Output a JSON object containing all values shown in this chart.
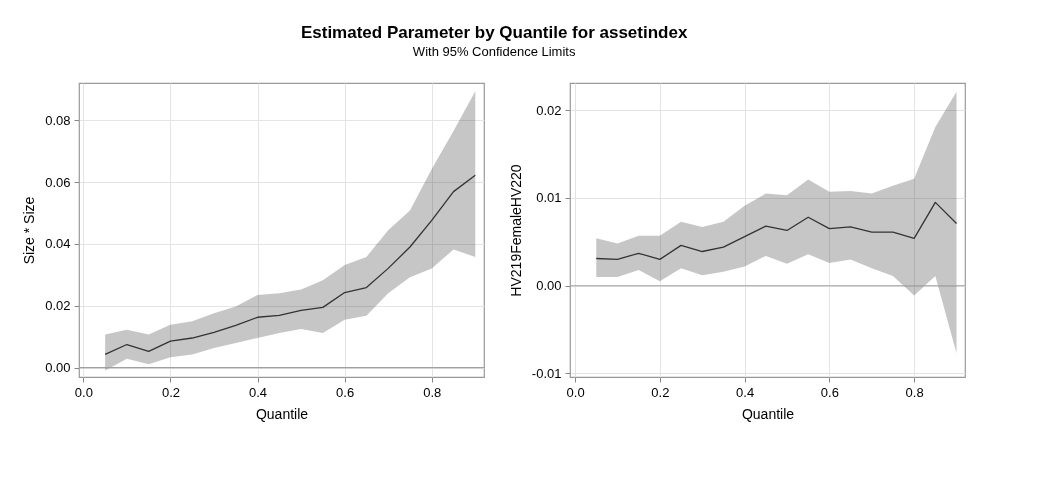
{
  "chart_data": [
    {
      "type": "line",
      "title": "Estimated Parameter by Quantile for assetindex",
      "subtitle": "With 95% Confidence Limits",
      "xlabel": "Quantile",
      "ylabel": "Size * Size",
      "x": [
        0.05,
        0.1,
        0.15,
        0.2,
        0.25,
        0.3,
        0.35,
        0.4,
        0.45,
        0.5,
        0.55,
        0.6,
        0.65,
        0.7,
        0.75,
        0.8,
        0.85,
        0.9
      ],
      "series": [
        {
          "color": "#333333",
          "values": [
            0.0043,
            0.0075,
            0.0053,
            0.0086,
            0.0096,
            0.0114,
            0.0137,
            0.0163,
            0.0169,
            0.0185,
            0.0195,
            0.0243,
            0.0259,
            0.0321,
            0.039,
            0.0476,
            0.0569,
            0.0622
          ],
          "lower": [
            -0.0009,
            0.0029,
            0.0011,
            0.0034,
            0.0043,
            0.0064,
            0.008,
            0.0096,
            0.0112,
            0.0125,
            0.0112,
            0.0155,
            0.0168,
            0.0241,
            0.0292,
            0.0321,
            0.0382,
            0.0358
          ],
          "upper": [
            0.0107,
            0.0123,
            0.0107,
            0.0139,
            0.015,
            0.0176,
            0.0198,
            0.0235,
            0.0241,
            0.0253,
            0.0283,
            0.0332,
            0.0358,
            0.0444,
            0.0508,
            0.0642,
            0.0765,
            0.0893
          ]
        }
      ],
      "xlim": [
        -0.01,
        0.92
      ],
      "xticks": [
        {
          "value": 0,
          "label": "0.0"
        },
        0.2,
        0.4,
        0.6,
        0.8
      ],
      "ylim": [
        -0.003,
        0.092
      ],
      "yticks": [
        {
          "value": 0,
          "label": "0.00"
        },
        0.02,
        0.04,
        0.06,
        0.08
      ],
      "ref_lines": [
        {
          "axis": "y",
          "value": 0,
          "color": "#a0a0a0"
        }
      ],
      "grid": true
    },
    {
      "type": "line",
      "xlabel": "Quantile",
      "ylabel": "HV219FemaleHV220",
      "x": [
        0.05,
        0.1,
        0.15,
        0.2,
        0.25,
        0.3,
        0.35,
        0.4,
        0.45,
        0.5,
        0.55,
        0.6,
        0.65,
        0.7,
        0.75,
        0.8,
        0.85,
        0.9
      ],
      "series": [
        {
          "color": "#333333",
          "values": [
            0.0031,
            0.003,
            0.0037,
            0.003,
            0.0046,
            0.0039,
            0.0044,
            0.0056,
            0.0068,
            0.0063,
            0.0078,
            0.0065,
            0.0067,
            0.0061,
            0.0061,
            0.0054,
            0.0095,
            0.0071
          ],
          "lower": [
            0.001,
            0.001,
            0.0018,
            0.0005,
            0.002,
            0.0012,
            0.0016,
            0.0022,
            0.0034,
            0.0025,
            0.0036,
            0.0026,
            0.003,
            0.002,
            0.0011,
            -0.0011,
            0.0011,
            -0.0077
          ],
          "upper": [
            0.0054,
            0.0048,
            0.0057,
            0.0057,
            0.0073,
            0.0067,
            0.0073,
            0.0091,
            0.0105,
            0.0103,
            0.0121,
            0.0107,
            0.0108,
            0.0105,
            0.0114,
            0.0122,
            0.0181,
            0.0221
          ]
        }
      ],
      "xlim": [
        -0.012,
        0.92
      ],
      "xticks": [
        {
          "value": 0,
          "label": "0.0"
        },
        0.2,
        0.4,
        0.6,
        0.8
      ],
      "ylim": [
        -0.0104,
        0.0231
      ],
      "yticks": [
        {
          "value": 0,
          "label": "0.00"
        },
        {
          "value": 0.02,
          "label": "0.02"
        },
        {
          "value": 0.01,
          "label": "0.01"
        },
        {
          "value": -0.01,
          "label": "-0.01"
        }
      ],
      "ref_lines": [
        {
          "axis": "y",
          "value": 0,
          "color": "#a0a0a0"
        }
      ],
      "grid": true
    }
  ]
}
